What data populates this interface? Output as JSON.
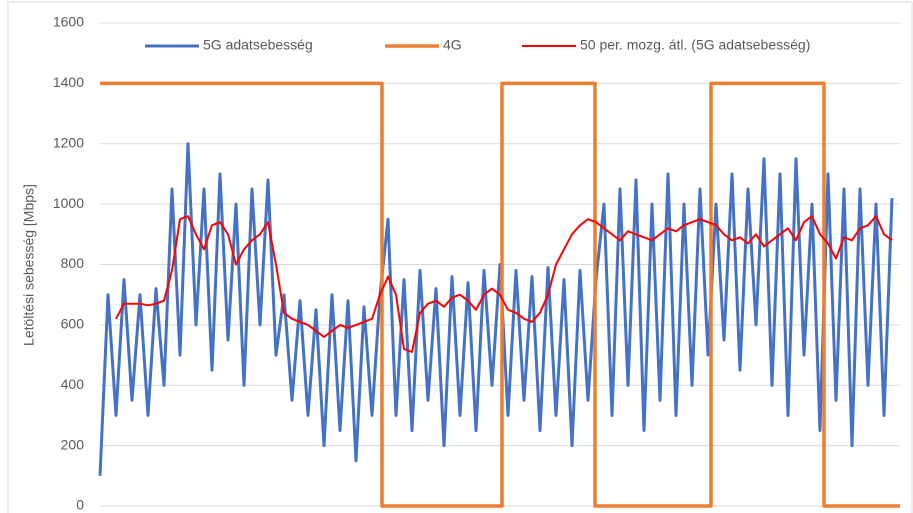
{
  "chart_data": {
    "type": "line",
    "ylabel": "Letöltési sebesség [Mbps]",
    "ylim": [
      0,
      1600
    ],
    "yticks": [
      0,
      200,
      400,
      600,
      800,
      1000,
      1200,
      1400,
      1600
    ],
    "grid": true,
    "xlim": [
      0,
      800
    ],
    "x": [
      0,
      8,
      16,
      24,
      32,
      40,
      48,
      56,
      64,
      72,
      80,
      88,
      96,
      104,
      112,
      120,
      128,
      136,
      144,
      152,
      160,
      168,
      176,
      184,
      192,
      200,
      208,
      216,
      224,
      232,
      240,
      248,
      256,
      264,
      272,
      280,
      288,
      296,
      304,
      312,
      320,
      328,
      336,
      344,
      352,
      360,
      368,
      376,
      384,
      392,
      400,
      408,
      416,
      424,
      432,
      440,
      448,
      456,
      464,
      472,
      480,
      488,
      496,
      504,
      512,
      520,
      528,
      536,
      544,
      552,
      560,
      568,
      576,
      584,
      592,
      600,
      608,
      616,
      624,
      632,
      640,
      648,
      656,
      664,
      672,
      680,
      688,
      696,
      704,
      712,
      720,
      728,
      736,
      744,
      752,
      760,
      768,
      776,
      784,
      792
    ],
    "legend": "top",
    "series": [
      {
        "name": "5G adatsebesség",
        "color": "#4472c4",
        "values": [
          100,
          700,
          300,
          750,
          350,
          700,
          300,
          720,
          400,
          1050,
          500,
          1200,
          600,
          1050,
          450,
          1100,
          550,
          1000,
          400,
          1050,
          600,
          1080,
          500,
          700,
          350,
          680,
          300,
          650,
          200,
          700,
          250,
          680,
          150,
          660,
          300,
          700,
          950,
          300,
          750,
          250,
          780,
          350,
          720,
          200,
          760,
          300,
          740,
          250,
          780,
          400,
          800,
          300,
          780,
          350,
          760,
          250,
          790,
          300,
          750,
          200,
          780,
          350,
          750,
          1000,
          300,
          1050,
          400,
          1080,
          250,
          1000,
          350,
          1100,
          300,
          1000,
          400,
          1050,
          500,
          1000,
          550,
          1100,
          450,
          1050,
          600,
          1150,
          400,
          1100,
          300,
          1150,
          500,
          1000,
          250,
          1100,
          350,
          1050,
          200,
          1050,
          400,
          1000,
          300,
          1020
        ]
      },
      {
        "name": "4G",
        "color": "#ed7d31",
        "x": [
          0,
          282,
          282,
          402,
          402,
          495,
          495,
          611,
          611,
          724,
          724,
          800
        ],
        "values": [
          1400,
          1400,
          0,
          0,
          1400,
          1400,
          0,
          0,
          1400,
          1400,
          0,
          0
        ]
      },
      {
        "name": "50 per. mozg. átl. (5G adatsebesség)",
        "color": "#ff0000",
        "values": [
          null,
          null,
          620,
          670,
          670,
          670,
          665,
          670,
          680,
          780,
          950,
          960,
          900,
          850,
          930,
          940,
          900,
          800,
          850,
          880,
          900,
          940,
          800,
          640,
          620,
          610,
          600,
          580,
          560,
          580,
          600,
          590,
          600,
          610,
          620,
          700,
          760,
          700,
          520,
          510,
          640,
          670,
          680,
          660,
          690,
          700,
          680,
          650,
          700,
          720,
          700,
          650,
          640,
          620,
          610,
          640,
          700,
          800,
          850,
          900,
          930,
          950,
          940,
          920,
          900,
          880,
          910,
          900,
          890,
          880,
          900,
          920,
          910,
          930,
          940,
          950,
          940,
          930,
          900,
          880,
          890,
          870,
          900,
          860,
          880,
          900,
          920,
          880,
          940,
          960,
          900,
          870,
          820,
          890,
          880,
          920,
          930,
          960,
          900,
          880
        ]
      }
    ]
  }
}
